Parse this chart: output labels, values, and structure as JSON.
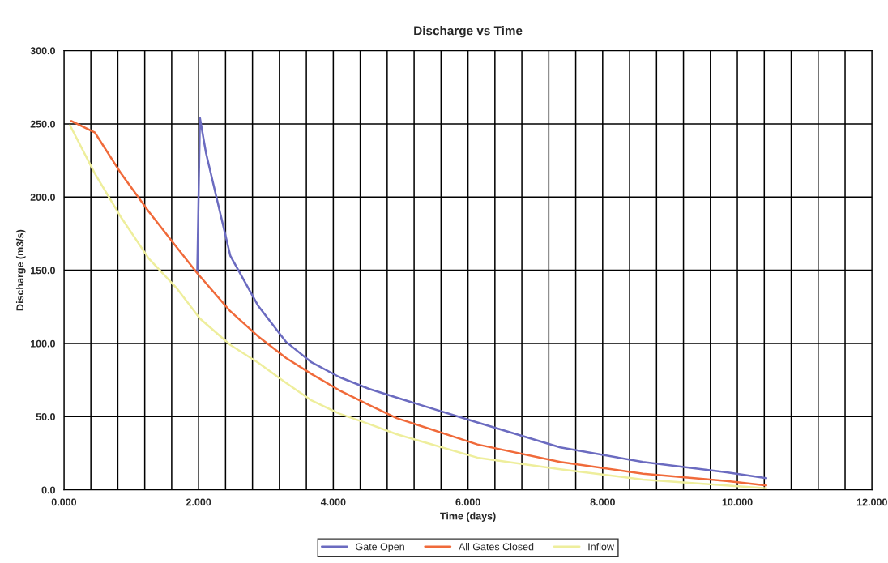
{
  "chart_data": {
    "type": "line",
    "title": "Discharge vs Time",
    "xlabel": "Time (days)",
    "ylabel": "Discharge (m3/s)",
    "series": [
      {
        "name": "Gate Open",
        "color": "#6b6bc0",
        "x": [
          1.98,
          2.02,
          2.11,
          2.47,
          2.88,
          3.3,
          3.68,
          4.09,
          4.53,
          4.94,
          6.14,
          7.37,
          8.6,
          9.84,
          10.43
        ],
        "values": [
          149,
          254,
          230,
          160,
          126,
          101,
          87,
          77,
          69,
          63,
          46,
          29,
          19,
          12,
          8
        ]
      },
      {
        "name": "All Gates Closed",
        "color": "#f06a3a",
        "x": [
          0.11,
          0.46,
          0.85,
          1.26,
          1.67,
          1.98,
          2.47,
          2.88,
          3.3,
          3.68,
          4.09,
          4.53,
          4.94,
          6.14,
          7.37,
          8.6,
          9.84,
          10.43
        ],
        "values": [
          252,
          244,
          216,
          190,
          166,
          148,
          122,
          105,
          90,
          79,
          68,
          58,
          49,
          31,
          19,
          11,
          6,
          3
        ]
      },
      {
        "name": "Inflow",
        "color": "#eeee9c",
        "x": [
          0.09,
          0.46,
          0.85,
          1.26,
          1.67,
          2.02,
          2.47,
          2.88,
          3.3,
          3.68,
          4.09,
          4.53,
          4.94,
          6.14,
          7.37,
          8.6,
          9.84,
          10.43
        ],
        "values": [
          249,
          216,
          186,
          158,
          138,
          117,
          99,
          87,
          73,
          61,
          52,
          45,
          38,
          22,
          14,
          7,
          3,
          1
        ]
      }
    ],
    "xlim": [
      0,
      12
    ],
    "ylim": [
      0,
      300
    ],
    "xticks": [
      {
        "value": 0,
        "label": "0.000"
      },
      {
        "value": 0.4,
        "label": null
      },
      {
        "value": 0.8,
        "label": null
      },
      {
        "value": 1.2,
        "label": null
      },
      {
        "value": 1.6,
        "label": null
      },
      {
        "value": 2,
        "label": "2.000"
      },
      {
        "value": 2.4,
        "label": null
      },
      {
        "value": 2.8,
        "label": null
      },
      {
        "value": 3.2,
        "label": null
      },
      {
        "value": 3.6,
        "label": null
      },
      {
        "value": 4,
        "label": "4.000"
      },
      {
        "value": 4.4,
        "label": null
      },
      {
        "value": 4.8,
        "label": null
      },
      {
        "value": 5.2,
        "label": null
      },
      {
        "value": 5.6,
        "label": null
      },
      {
        "value": 6,
        "label": "6.000"
      },
      {
        "value": 6.4,
        "label": null
      },
      {
        "value": 6.8,
        "label": null
      },
      {
        "value": 7.2,
        "label": null
      },
      {
        "value": 7.6,
        "label": null
      },
      {
        "value": 8,
        "label": "8.000"
      },
      {
        "value": 8.4,
        "label": null
      },
      {
        "value": 8.8,
        "label": null
      },
      {
        "value": 9.2,
        "label": null
      },
      {
        "value": 9.6,
        "label": null
      },
      {
        "value": 10,
        "label": "10.000"
      },
      {
        "value": 10.4,
        "label": null
      },
      {
        "value": 10.8,
        "label": null
      },
      {
        "value": 11.2,
        "label": null
      },
      {
        "value": 11.6,
        "label": null
      },
      {
        "value": 12,
        "label": "12.000"
      }
    ],
    "yticks": [
      {
        "value": 0,
        "label": "0.0"
      },
      {
        "value": 50,
        "label": "50.0"
      },
      {
        "value": 100,
        "label": "100.0"
      },
      {
        "value": 150,
        "label": "150.0"
      },
      {
        "value": 200,
        "label": "200.0"
      },
      {
        "value": 250,
        "label": "250.0"
      },
      {
        "value": 300,
        "label": "300.0"
      }
    ],
    "grid": true,
    "legend": "bottom",
    "marker": "none",
    "line_style": "solid"
  }
}
